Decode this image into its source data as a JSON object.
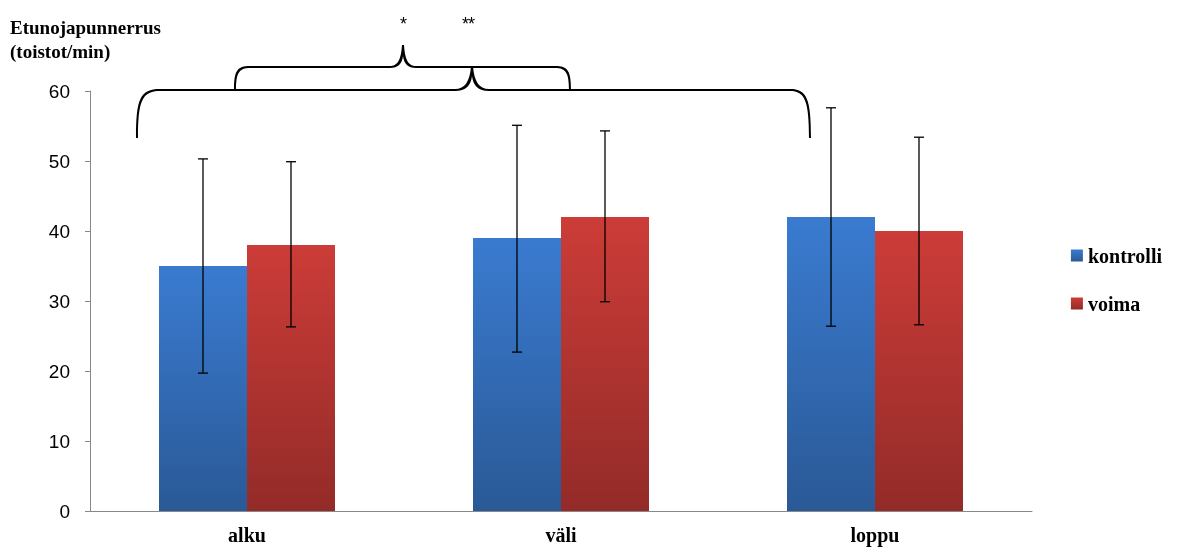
{
  "chart_data": {
    "type": "bar",
    "ylabel": "Etunojapunnerrus\n(toistot/min)",
    "categories": [
      "alku",
      "väli",
      "loppu"
    ],
    "series": [
      {
        "name": "kontrolli",
        "color": "#3a7bd0",
        "values": [
          35,
          39,
          42
        ],
        "errors": [
          [
            19.7,
            50.3
          ],
          [
            22.7,
            55.1
          ],
          [
            26.4,
            57.6
          ]
        ]
      },
      {
        "name": "voima",
        "color": "#cc3c38",
        "values": [
          38,
          42,
          40
        ],
        "errors": [
          [
            26.3,
            49.9
          ],
          [
            29.9,
            54.3
          ],
          [
            26.6,
            53.4
          ]
        ]
      }
    ],
    "ylim": [
      0,
      60
    ],
    "yticks": [
      0,
      10,
      20,
      30,
      40,
      50,
      60
    ],
    "grid": false,
    "legend": "right",
    "annotations": [
      "* **"
    ]
  }
}
